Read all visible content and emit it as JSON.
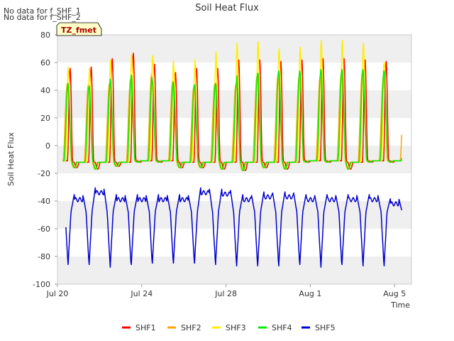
{
  "notes": [
    "No data for f_SHF_1",
    "No data for f_SHF_2"
  ],
  "badge": "TZ_fmet",
  "chart_data": {
    "type": "line",
    "title": "Soil Heat Flux",
    "xlabel": "Time",
    "ylabel": "Soil Heat Flux",
    "ylim": [
      -100,
      80
    ],
    "xlim_days": [
      0,
      16.8
    ],
    "yticks": [
      -100,
      -80,
      -60,
      -40,
      -20,
      0,
      20,
      40,
      60,
      80
    ],
    "xticks": [
      {
        "day": 0,
        "label": "Jul 20"
      },
      {
        "day": 4,
        "label": "Jul 24"
      },
      {
        "day": 8,
        "label": "Jul 28"
      },
      {
        "day": 12,
        "label": "Aug 1"
      },
      {
        "day": 16,
        "label": "Aug 5"
      }
    ],
    "grid": "horizontal bands",
    "legend_position": "bottom",
    "daily": {
      "days": [
        0,
        1,
        2,
        3,
        4,
        5,
        6,
        7,
        8,
        9,
        10,
        11,
        12,
        13,
        14,
        15,
        16
      ],
      "SHF1_peak": [
        56,
        56,
        57,
        63,
        67,
        59,
        53,
        56,
        56,
        62,
        62,
        61,
        62,
        63,
        63,
        62,
        61
      ],
      "SHF2_peak": [
        45,
        44,
        45,
        48,
        52,
        47,
        42,
        45,
        45,
        50,
        51,
        50,
        50,
        52,
        53,
        50,
        50
      ],
      "SHF3_peak": [
        60,
        54,
        56,
        62,
        66,
        65,
        57,
        62,
        68,
        74,
        75,
        70,
        71,
        76,
        76,
        74,
        60
      ],
      "SHF4_peak": [
        45,
        43,
        44,
        48,
        51,
        46,
        44,
        45,
        45,
        52,
        54,
        54,
        54,
        55,
        55,
        55,
        54
      ],
      "base_min": [
        -12,
        -16,
        -17,
        -15,
        -12,
        -12,
        -16,
        -16,
        -17,
        -18,
        -16,
        -17,
        -12,
        -12,
        -17,
        -12,
        -12
      ],
      "SHF5_high": [
        -37,
        -37,
        -32,
        -37,
        -37,
        -37,
        -37,
        -32,
        -33,
        -37,
        -35,
        -35,
        -37,
        -37,
        -37,
        -37,
        -40
      ],
      "SHF5_low": [
        -86,
        -87,
        -87,
        -89,
        -87,
        -86,
        -86,
        -86,
        -87,
        -88,
        -88,
        -88,
        -87,
        -89,
        -87,
        -88,
        -88
      ]
    },
    "series": [
      {
        "name": "SHF1",
        "color": "#ff0000"
      },
      {
        "name": "SHF2",
        "color": "#ffa500"
      },
      {
        "name": "SHF3",
        "color": "#ffee00"
      },
      {
        "name": "SHF4",
        "color": "#00ee00"
      },
      {
        "name": "SHF5",
        "color": "#0000cc"
      }
    ]
  }
}
